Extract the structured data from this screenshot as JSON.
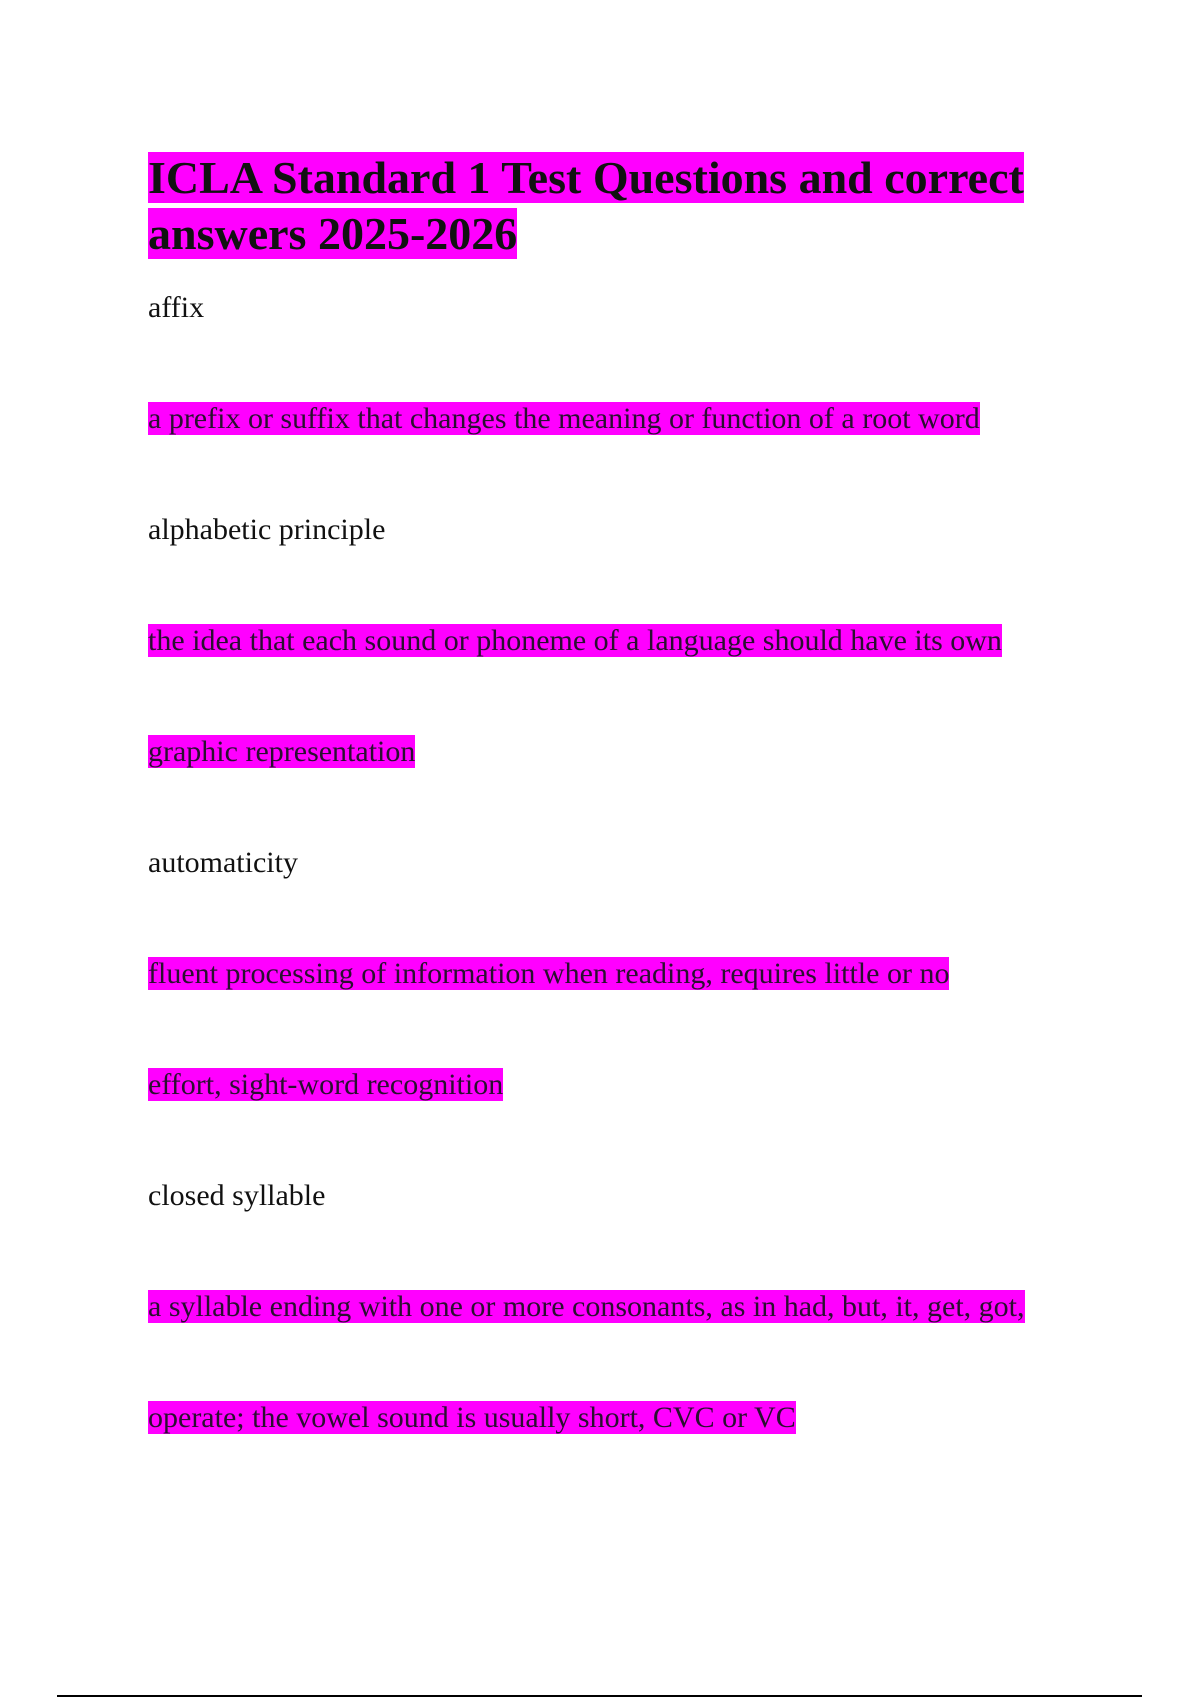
{
  "document": {
    "title": "ICLA Standard 1 Test Questions and correct answers 2025-2026",
    "highlight_color": "#ff00ff",
    "lines": [
      {
        "type": "term",
        "text": "affix"
      },
      {
        "type": "answer",
        "text": "a prefix or suffix that changes the meaning or function of a root word"
      },
      {
        "type": "term",
        "text": "alphabetic principle"
      },
      {
        "type": "answer",
        "text": "the idea that each sound or phoneme of a language should have its own"
      },
      {
        "type": "answer",
        "text": "graphic representation"
      },
      {
        "type": "term",
        "text": "automaticity"
      },
      {
        "type": "answer",
        "text": "fluent processing of information when reading, requires little or no"
      },
      {
        "type": "answer",
        "text": "effort, sight-word recognition"
      },
      {
        "type": "term",
        "text": "closed syllable"
      },
      {
        "type": "answer",
        "text": "a syllable ending with one or more consonants, as in had, but, it, get, got,"
      },
      {
        "type": "answer",
        "text": "operate; the vowel sound is usually short, CVC or VC"
      }
    ]
  }
}
